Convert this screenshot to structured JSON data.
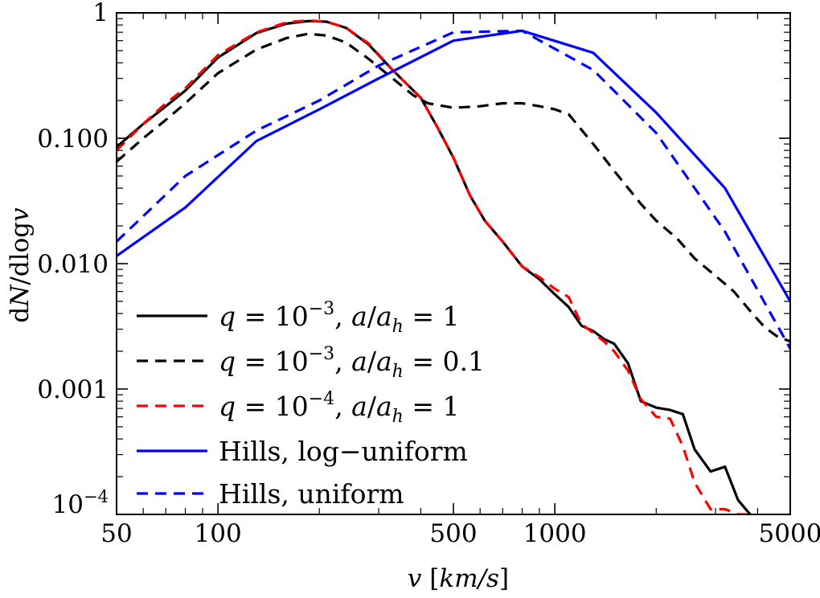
{
  "chart_data": {
    "type": "line",
    "title": "",
    "xlabel": "v [km/s]",
    "ylabel": "dN/dlogv",
    "xscale": "log",
    "yscale": "log",
    "xlim": [
      50,
      5000
    ],
    "ylim": [
      0.0001,
      1
    ],
    "grid": false,
    "legend_position": "bottom-left",
    "x_ticks": [
      {
        "value": 50,
        "label": "50"
      },
      {
        "value": 100,
        "label": "100"
      },
      {
        "value": 500,
        "label": "500"
      },
      {
        "value": 1000,
        "label": "1000"
      },
      {
        "value": 5000,
        "label": "5000"
      }
    ],
    "y_ticks": [
      {
        "value": 0.0001,
        "label": "10",
        "sup": "−4"
      },
      {
        "value": 0.001,
        "label": "0.001",
        "sup": ""
      },
      {
        "value": 0.01,
        "label": "0.010",
        "sup": ""
      },
      {
        "value": 0.1,
        "label": "0.100",
        "sup": ""
      },
      {
        "value": 1,
        "label": "1",
        "sup": ""
      }
    ],
    "series": [
      {
        "name": "q = 10^-3, a/a_h = 1",
        "legend": {
          "q_exp": "−3",
          "ratio": "1"
        },
        "color": "#000000",
        "dash": "solid",
        "x": [
          50,
          60,
          70,
          80,
          100,
          130,
          160,
          185,
          210,
          240,
          280,
          330,
          400,
          450,
          500,
          560,
          620,
          700,
          800,
          900,
          1000,
          1100,
          1200,
          1300,
          1400,
          1500,
          1650,
          1800,
          2000,
          2200,
          2400,
          2600,
          2900,
          3200,
          3500,
          3800
        ],
        "y": [
          0.085,
          0.13,
          0.18,
          0.24,
          0.44,
          0.69,
          0.82,
          0.86,
          0.85,
          0.76,
          0.56,
          0.35,
          0.21,
          0.12,
          0.07,
          0.035,
          0.022,
          0.015,
          0.0095,
          0.0075,
          0.0057,
          0.0045,
          0.0032,
          0.0029,
          0.0025,
          0.0023,
          0.0016,
          0.0008,
          0.00071,
          0.00068,
          0.00063,
          0.00033,
          0.00022,
          0.00024,
          0.00013,
          0.0001
        ]
      },
      {
        "name": "q = 10^-3, a/a_h = 0.1",
        "legend": {
          "q_exp": "−3",
          "ratio": "0.1"
        },
        "color": "#000000",
        "dash": "dashed",
        "x": [
          50,
          60,
          70,
          80,
          100,
          130,
          160,
          185,
          210,
          240,
          280,
          330,
          380,
          420,
          500,
          600,
          700,
          800,
          900,
          1000,
          1100,
          1300,
          1500,
          1800,
          2000,
          2300,
          2600,
          3000,
          3400,
          3800,
          4200,
          4600,
          5000
        ],
        "y": [
          0.065,
          0.1,
          0.14,
          0.19,
          0.33,
          0.51,
          0.63,
          0.68,
          0.66,
          0.58,
          0.43,
          0.3,
          0.22,
          0.19,
          0.175,
          0.18,
          0.19,
          0.19,
          0.18,
          0.17,
          0.155,
          0.09,
          0.055,
          0.03,
          0.022,
          0.016,
          0.011,
          0.008,
          0.006,
          0.0042,
          0.0031,
          0.0026,
          0.0024
        ]
      },
      {
        "name": "q = 10^-4, a/a_h = 1",
        "legend": {
          "q_exp": "−4",
          "ratio": "1"
        },
        "color": "#ff0000",
        "dash": "dashed",
        "x": [
          50,
          60,
          70,
          80,
          100,
          130,
          160,
          185,
          210,
          240,
          280,
          330,
          400,
          450,
          500,
          560,
          620,
          700,
          800,
          900,
          1000,
          1100,
          1200,
          1300,
          1400,
          1500,
          1650,
          1800,
          2000,
          2200,
          2400,
          2600,
          2900,
          3200,
          3500,
          3700
        ],
        "y": [
          0.08,
          0.13,
          0.19,
          0.25,
          0.46,
          0.7,
          0.84,
          0.87,
          0.85,
          0.76,
          0.57,
          0.35,
          0.21,
          0.12,
          0.07,
          0.035,
          0.022,
          0.015,
          0.0095,
          0.0078,
          0.0063,
          0.0054,
          0.0033,
          0.0028,
          0.0024,
          0.002,
          0.0014,
          0.00083,
          0.0006,
          0.00058,
          0.00035,
          0.00018,
          0.00011,
          0.00011,
          0.0001,
          0.0001
        ]
      },
      {
        "name": "Hills, log-uniform",
        "legend": {
          "text": "Hills, log−uniform"
        },
        "color": "#0000ff",
        "dash": "solid",
        "x": [
          50,
          80,
          130,
          200,
          300,
          500,
          800,
          1300,
          2000,
          3200,
          5000
        ],
        "y": [
          0.0115,
          0.028,
          0.095,
          0.17,
          0.3,
          0.6,
          0.72,
          0.48,
          0.16,
          0.04,
          0.005
        ]
      },
      {
        "name": "Hills, uniform",
        "legend": {
          "text": "Hills, uniform"
        },
        "color": "#0000ff",
        "dash": "dashed",
        "x": [
          50,
          80,
          130,
          200,
          300,
          500,
          800,
          1300,
          2000,
          3200,
          5000
        ],
        "y": [
          0.015,
          0.05,
          0.115,
          0.2,
          0.38,
          0.7,
          0.72,
          0.35,
          0.11,
          0.018,
          0.0021
        ]
      }
    ]
  }
}
